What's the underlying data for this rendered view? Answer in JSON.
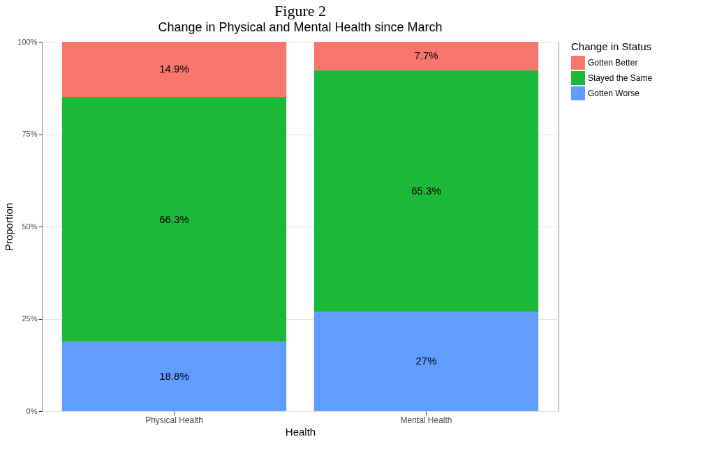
{
  "chart_data": {
    "type": "bar",
    "title": "Figure 2",
    "subtitle": "Change in Physical and Mental Health since March",
    "xlabel": "Health",
    "ylabel": "Proportion",
    "legend_title": "Change in Status",
    "categories": [
      "Physical Health",
      "Mental Health"
    ],
    "stacked": true,
    "series": [
      {
        "name": "Gotten Worse",
        "color": "#619cff",
        "values": [
          18.8,
          27
        ],
        "value_labels": [
          "18.8%",
          "27%"
        ]
      },
      {
        "name": "Stayed the Same",
        "color": "#1cb83a",
        "values": [
          66.3,
          65.3
        ],
        "value_labels": [
          "66.3%",
          "65.3%"
        ]
      },
      {
        "name": "Gotten Better",
        "color": "#f8766d",
        "values": [
          14.9,
          7.7
        ],
        "value_labels": [
          "14.9%",
          "7.7%"
        ]
      }
    ],
    "ylim": [
      0,
      100
    ],
    "yticks": [
      {
        "value": 0,
        "label": "0%"
      },
      {
        "value": 25,
        "label": "25%"
      },
      {
        "value": 50,
        "label": "50%"
      },
      {
        "value": 75,
        "label": "75%"
      },
      {
        "value": 100,
        "label": "100%"
      }
    ],
    "grid": true,
    "legend": "right"
  }
}
